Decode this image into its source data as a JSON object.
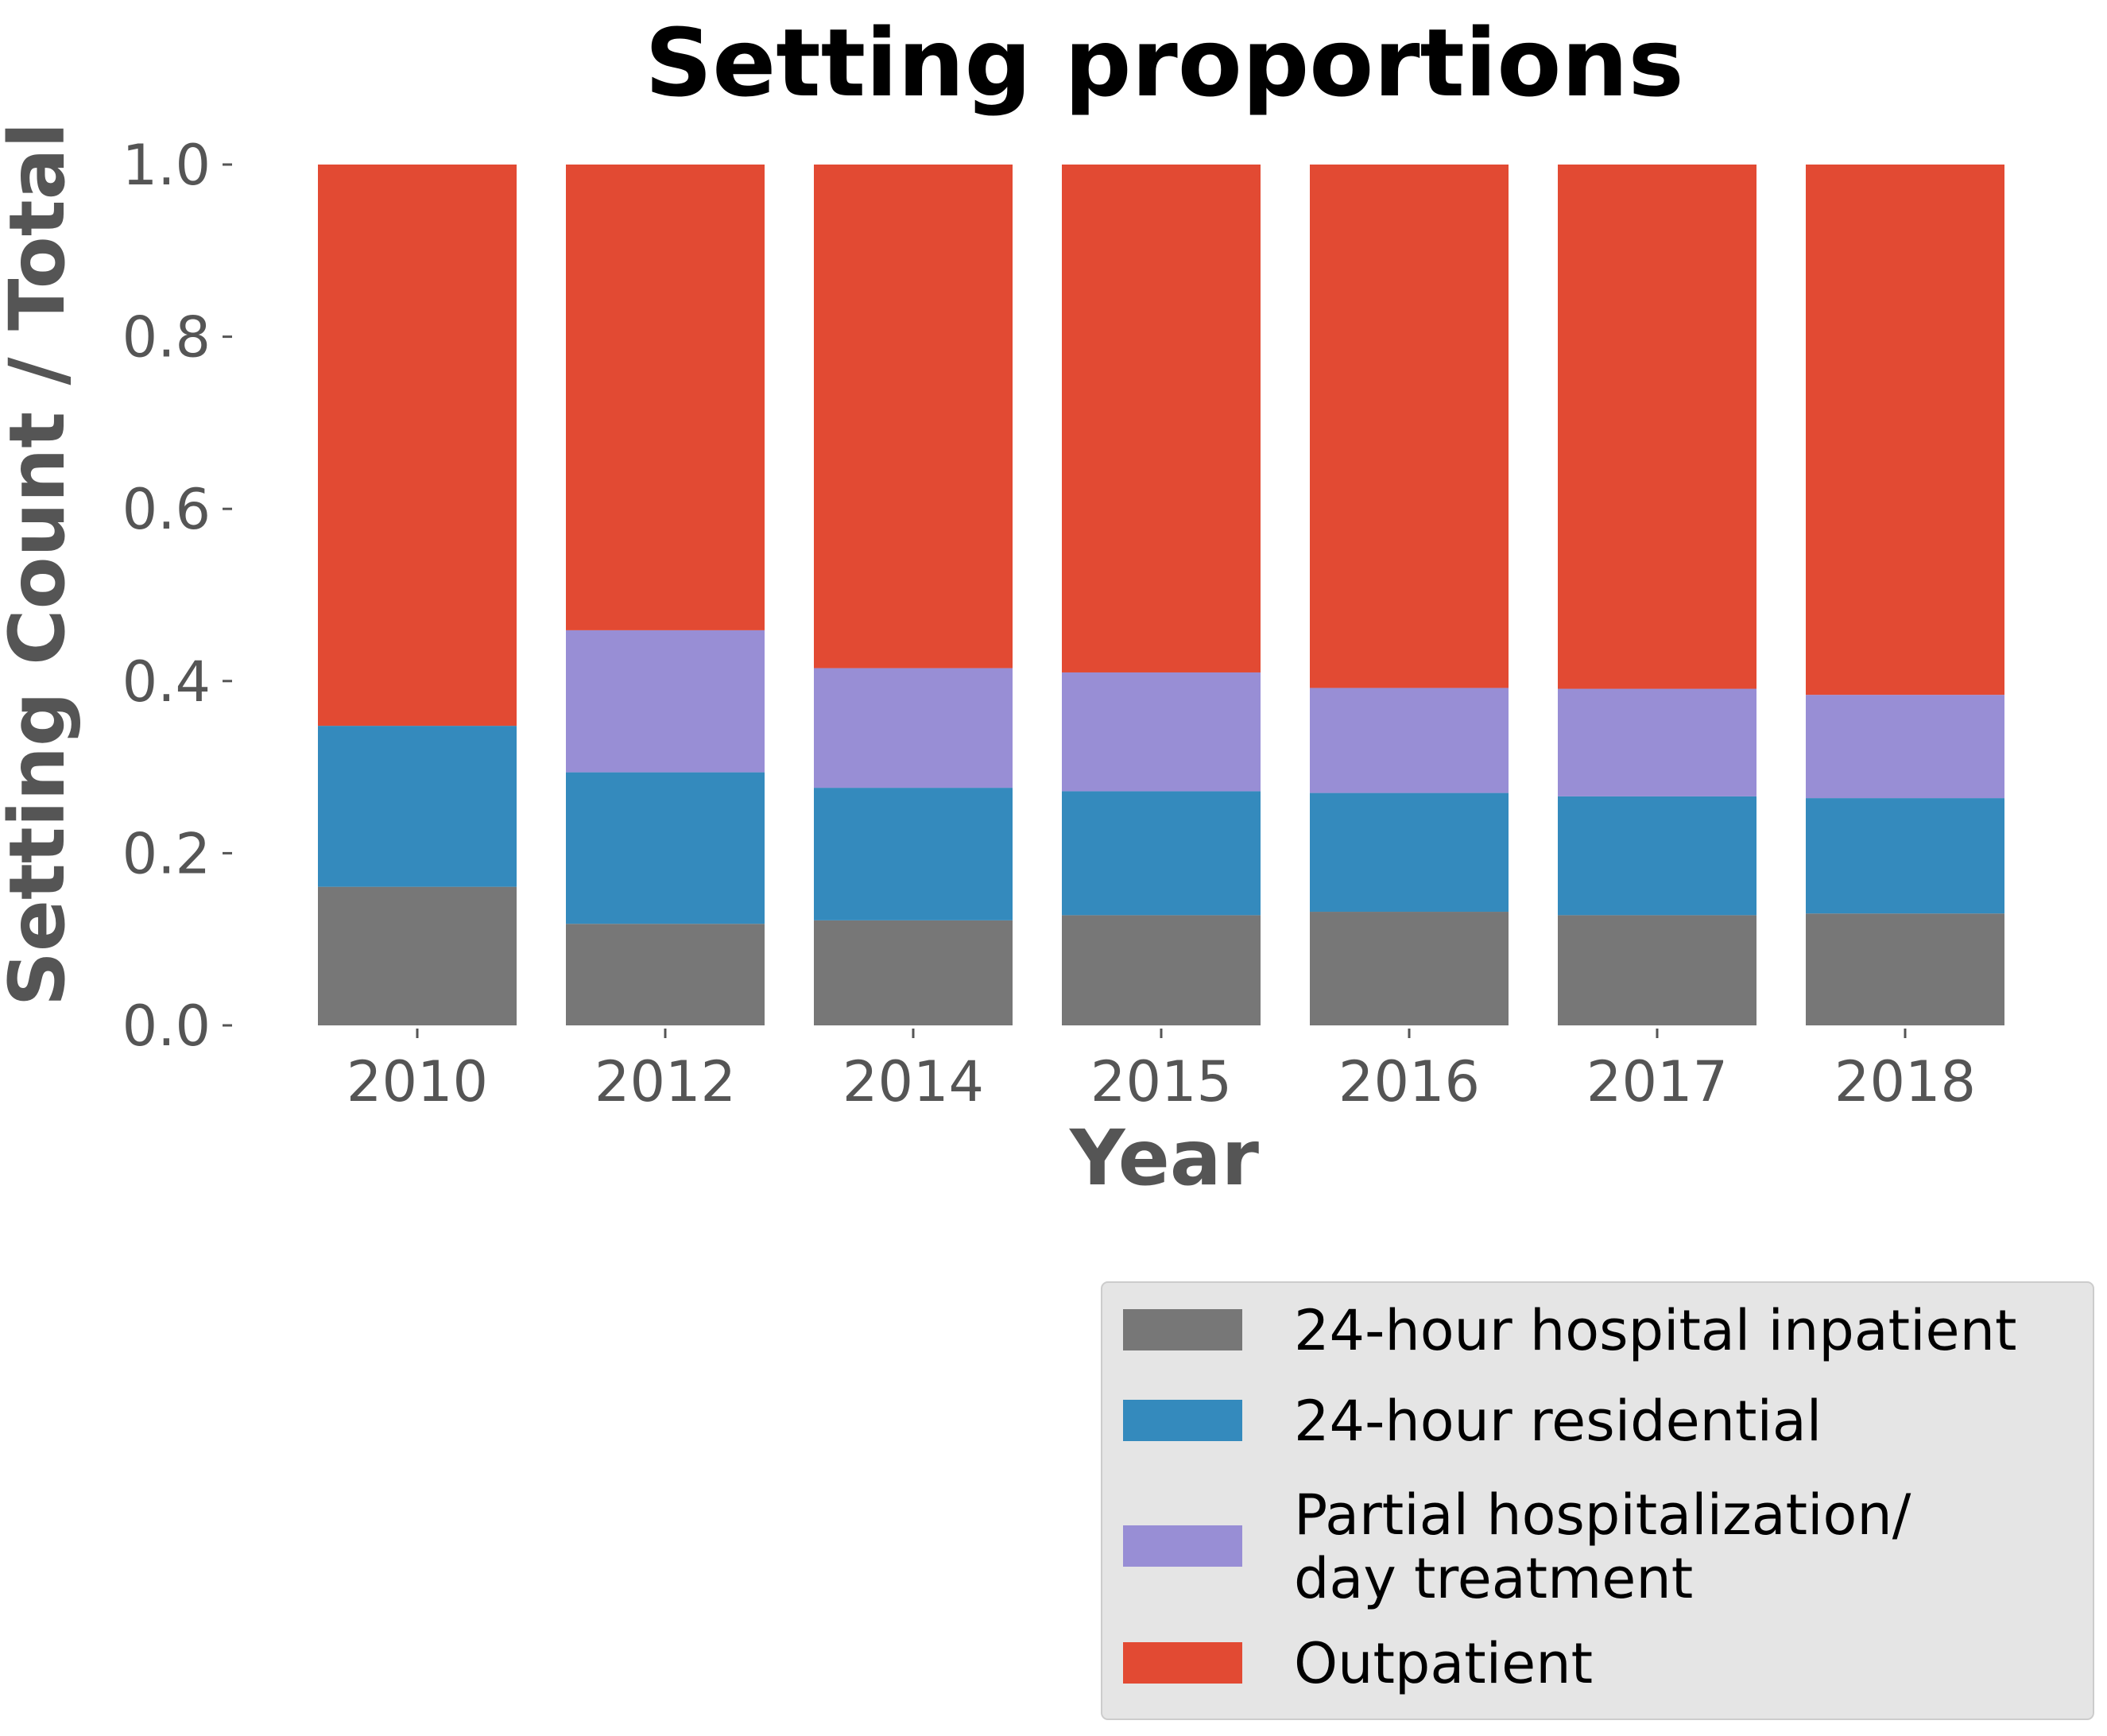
{
  "chart_data": {
    "type": "bar",
    "stacked": true,
    "title": "Setting proportions",
    "xlabel": "Year",
    "ylabel": "Setting Count / Total",
    "ylim": [
      0,
      1.0
    ],
    "yticks": [
      "0.0",
      "0.2",
      "0.4",
      "0.6",
      "0.8",
      "1.0"
    ],
    "grid": false,
    "legend_position": "below-right",
    "categories": [
      "2010",
      "2012",
      "2014",
      "2015",
      "2016",
      "2017",
      "2018"
    ],
    "series": [
      {
        "name": "24-hour hospital inpatient",
        "color": "#777777",
        "values": [
          0.161,
          0.118,
          0.122,
          0.128,
          0.132,
          0.128,
          0.13
        ]
      },
      {
        "name": "24-hour residential",
        "color": "#348ABD",
        "values": [
          0.187,
          0.176,
          0.154,
          0.144,
          0.138,
          0.138,
          0.134
        ]
      },
      {
        "name": "Partial hospitalization/\nday treatment",
        "color": "#988ED5",
        "values": [
          0.0,
          0.165,
          0.139,
          0.138,
          0.122,
          0.125,
          0.12
        ]
      },
      {
        "name": "Outpatient",
        "color": "#E24A33",
        "values": [
          0.652,
          0.541,
          0.585,
          0.59,
          0.608,
          0.609,
          0.616
        ]
      }
    ]
  }
}
